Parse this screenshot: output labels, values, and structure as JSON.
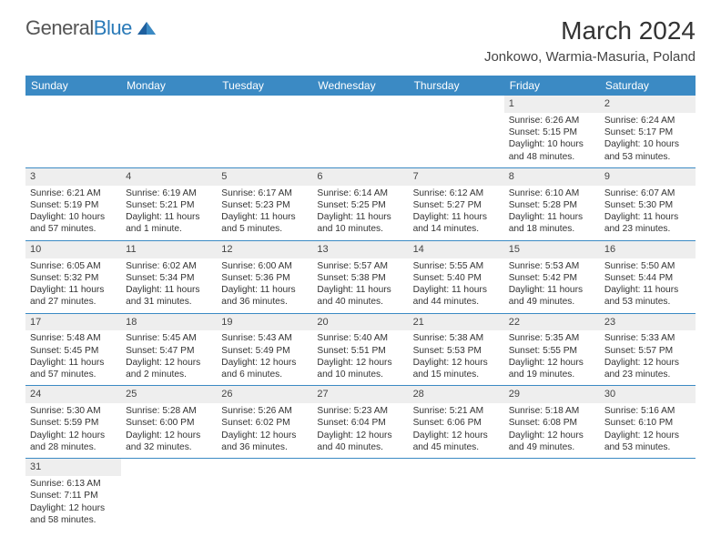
{
  "logo": {
    "part1": "General",
    "part2": "Blue"
  },
  "title": "March 2024",
  "location": "Jonkowo, Warmia-Masuria, Poland",
  "colors": {
    "header_bg": "#3b8ac4",
    "daynum_bg": "#eeeeee",
    "border": "#3b8ac4"
  },
  "weekdays": [
    "Sunday",
    "Monday",
    "Tuesday",
    "Wednesday",
    "Thursday",
    "Friday",
    "Saturday"
  ],
  "weeks": [
    [
      null,
      null,
      null,
      null,
      null,
      {
        "n": "1",
        "sr": "6:26 AM",
        "ss": "5:15 PM",
        "dl": "10 hours and 48 minutes."
      },
      {
        "n": "2",
        "sr": "6:24 AM",
        "ss": "5:17 PM",
        "dl": "10 hours and 53 minutes."
      }
    ],
    [
      {
        "n": "3",
        "sr": "6:21 AM",
        "ss": "5:19 PM",
        "dl": "10 hours and 57 minutes."
      },
      {
        "n": "4",
        "sr": "6:19 AM",
        "ss": "5:21 PM",
        "dl": "11 hours and 1 minute."
      },
      {
        "n": "5",
        "sr": "6:17 AM",
        "ss": "5:23 PM",
        "dl": "11 hours and 5 minutes."
      },
      {
        "n": "6",
        "sr": "6:14 AM",
        "ss": "5:25 PM",
        "dl": "11 hours and 10 minutes."
      },
      {
        "n": "7",
        "sr": "6:12 AM",
        "ss": "5:27 PM",
        "dl": "11 hours and 14 minutes."
      },
      {
        "n": "8",
        "sr": "6:10 AM",
        "ss": "5:28 PM",
        "dl": "11 hours and 18 minutes."
      },
      {
        "n": "9",
        "sr": "6:07 AM",
        "ss": "5:30 PM",
        "dl": "11 hours and 23 minutes."
      }
    ],
    [
      {
        "n": "10",
        "sr": "6:05 AM",
        "ss": "5:32 PM",
        "dl": "11 hours and 27 minutes."
      },
      {
        "n": "11",
        "sr": "6:02 AM",
        "ss": "5:34 PM",
        "dl": "11 hours and 31 minutes."
      },
      {
        "n": "12",
        "sr": "6:00 AM",
        "ss": "5:36 PM",
        "dl": "11 hours and 36 minutes."
      },
      {
        "n": "13",
        "sr": "5:57 AM",
        "ss": "5:38 PM",
        "dl": "11 hours and 40 minutes."
      },
      {
        "n": "14",
        "sr": "5:55 AM",
        "ss": "5:40 PM",
        "dl": "11 hours and 44 minutes."
      },
      {
        "n": "15",
        "sr": "5:53 AM",
        "ss": "5:42 PM",
        "dl": "11 hours and 49 minutes."
      },
      {
        "n": "16",
        "sr": "5:50 AM",
        "ss": "5:44 PM",
        "dl": "11 hours and 53 minutes."
      }
    ],
    [
      {
        "n": "17",
        "sr": "5:48 AM",
        "ss": "5:45 PM",
        "dl": "11 hours and 57 minutes."
      },
      {
        "n": "18",
        "sr": "5:45 AM",
        "ss": "5:47 PM",
        "dl": "12 hours and 2 minutes."
      },
      {
        "n": "19",
        "sr": "5:43 AM",
        "ss": "5:49 PM",
        "dl": "12 hours and 6 minutes."
      },
      {
        "n": "20",
        "sr": "5:40 AM",
        "ss": "5:51 PM",
        "dl": "12 hours and 10 minutes."
      },
      {
        "n": "21",
        "sr": "5:38 AM",
        "ss": "5:53 PM",
        "dl": "12 hours and 15 minutes."
      },
      {
        "n": "22",
        "sr": "5:35 AM",
        "ss": "5:55 PM",
        "dl": "12 hours and 19 minutes."
      },
      {
        "n": "23",
        "sr": "5:33 AM",
        "ss": "5:57 PM",
        "dl": "12 hours and 23 minutes."
      }
    ],
    [
      {
        "n": "24",
        "sr": "5:30 AM",
        "ss": "5:59 PM",
        "dl": "12 hours and 28 minutes."
      },
      {
        "n": "25",
        "sr": "5:28 AM",
        "ss": "6:00 PM",
        "dl": "12 hours and 32 minutes."
      },
      {
        "n": "26",
        "sr": "5:26 AM",
        "ss": "6:02 PM",
        "dl": "12 hours and 36 minutes."
      },
      {
        "n": "27",
        "sr": "5:23 AM",
        "ss": "6:04 PM",
        "dl": "12 hours and 40 minutes."
      },
      {
        "n": "28",
        "sr": "5:21 AM",
        "ss": "6:06 PM",
        "dl": "12 hours and 45 minutes."
      },
      {
        "n": "29",
        "sr": "5:18 AM",
        "ss": "6:08 PM",
        "dl": "12 hours and 49 minutes."
      },
      {
        "n": "30",
        "sr": "5:16 AM",
        "ss": "6:10 PM",
        "dl": "12 hours and 53 minutes."
      }
    ],
    [
      {
        "n": "31",
        "sr": "6:13 AM",
        "ss": "7:11 PM",
        "dl": "12 hours and 58 minutes."
      },
      null,
      null,
      null,
      null,
      null,
      null
    ]
  ],
  "labels": {
    "sunrise": "Sunrise:",
    "sunset": "Sunset:",
    "daylight": "Daylight:"
  }
}
